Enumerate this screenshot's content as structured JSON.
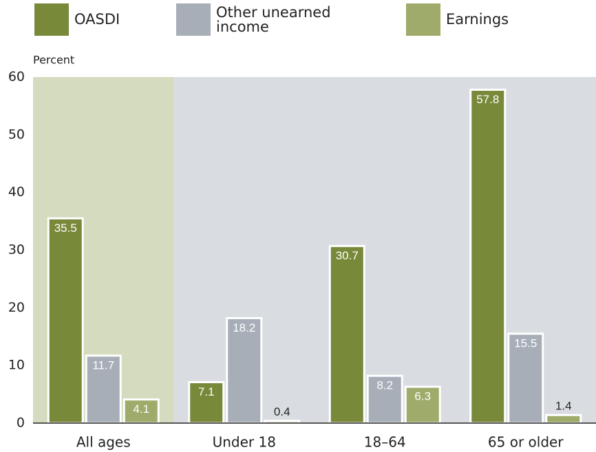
{
  "chart_data": {
    "type": "bar",
    "y_label": "Percent",
    "categories": [
      "All ages",
      "Under 18",
      "18–64",
      "65 or older"
    ],
    "series": [
      {
        "name": "OASDI",
        "color": "#78893a",
        "values": [
          35.5,
          7.1,
          30.7,
          57.8
        ]
      },
      {
        "name": "Other unearned income",
        "color": "#a7aeb8",
        "values": [
          11.7,
          18.2,
          8.2,
          15.5
        ]
      },
      {
        "name": "Earnings",
        "color": "#9eab6a",
        "values": [
          4.1,
          0.4,
          6.3,
          1.4
        ]
      }
    ],
    "ylim": [
      0,
      60
    ],
    "yticks": [
      0,
      10,
      20,
      30,
      40,
      50,
      60
    ],
    "grid": false,
    "plot_background": "#d9dde2",
    "highlight_category": "All ages",
    "highlight_color": "#d4dbbf"
  }
}
